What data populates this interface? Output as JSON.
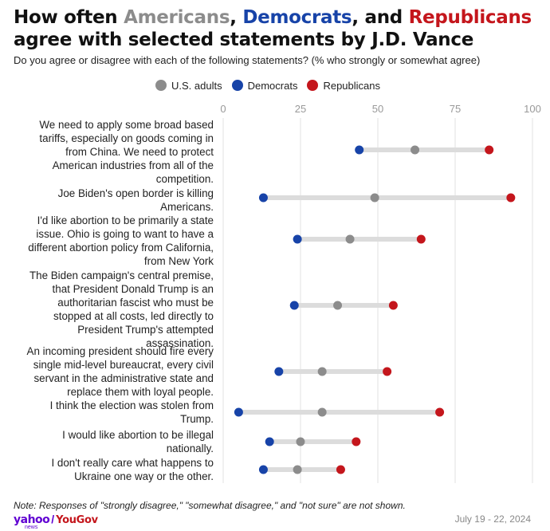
{
  "header": {
    "title_pre": "How often ",
    "title_americans": "Americans",
    "title_comma": ", ",
    "title_democrats": "Democrats",
    "title_and": ", and ",
    "title_republicans": "Republicans",
    "title_line2": "agree with selected statements by J.D. Vance",
    "subtitle": "Do you agree or disagree with each of the following statements? (% who strongly or somewhat agree)"
  },
  "colors": {
    "us_adults": "#8c8c8c",
    "democrats": "#1743a8",
    "republicans": "#c4161c",
    "bar": "#dcdcdc",
    "grid": "#e2e2e2"
  },
  "chart_data": {
    "type": "dot-range",
    "title": "How often Americans, Democrats, and Republicans agree with selected statements by J.D. Vance",
    "subtitle": "Do you agree or disagree with each of the following statements? (% who strongly or somewhat agree)",
    "xlim": [
      0,
      100
    ],
    "xticks": [
      0,
      25,
      50,
      75,
      100
    ],
    "grid": true,
    "legend_position": "top",
    "categories": [
      [
        "We need to apply some broad based",
        "tariffs, especially on goods coming in",
        "from China. We need to protect",
        "American industries from all of the",
        "competition."
      ],
      [
        "Joe Biden's open border is killing",
        "Americans."
      ],
      [
        "I'd like abortion to be primarily a state",
        "issue. Ohio is going to want to have a",
        "different abortion policy from California,",
        "from New York"
      ],
      [
        "The Biden campaign's central premise,",
        "that President Donald Trump is an",
        "authoritarian fascist who must be",
        "stopped at all costs, led directly to",
        "President Trump's attempted",
        "assassination."
      ],
      [
        "An incoming president should fire every",
        "single mid-level bureaucrat, every civil",
        "servant in the administrative state and",
        "replace them with loyal people."
      ],
      [
        "I think the election was stolen from",
        "Trump."
      ],
      [
        "I would like abortion to be illegal",
        "nationally."
      ],
      [
        "I don't really care what happens to",
        "Ukraine one way or the other."
      ]
    ],
    "series": [
      {
        "name": "U.S. adults",
        "values": [
          62,
          49,
          41,
          37,
          32,
          32,
          25,
          24
        ]
      },
      {
        "name": "Democrats",
        "values": [
          44,
          13,
          24,
          23,
          18,
          5,
          15,
          13
        ]
      },
      {
        "name": "Republicans",
        "values": [
          86,
          93,
          64,
          55,
          53,
          70,
          43,
          38
        ]
      }
    ]
  },
  "footer": {
    "note": "Note: Responses of \"strongly disagree,\" \"somewhat disagree,\" and \"not sure\" are not shown.",
    "logo_yahoo": "yahoo",
    "logo_news": "news",
    "logo_sep": "/",
    "logo_yougov": "YouGov",
    "date": "July 19 - 22, 2024"
  }
}
